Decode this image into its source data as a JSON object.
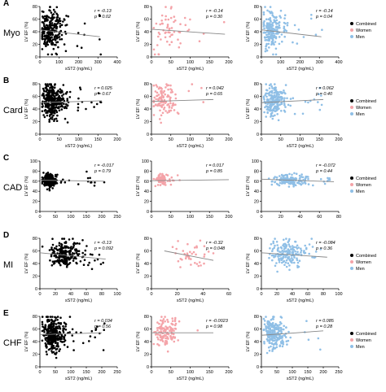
{
  "legend": {
    "items": [
      {
        "label": "Combined",
        "color": "#000000"
      },
      {
        "label": "Women",
        "color": "#f4a3a8"
      },
      {
        "label": "Men",
        "color": "#8fbfe6"
      }
    ],
    "placement": "right"
  },
  "colors": {
    "combined": "#000000",
    "women": "#f4a3a8",
    "men": "#8fbfe6",
    "trend": "#888888"
  },
  "chart_data": [
    {
      "type": "scatter",
      "panel": "A",
      "row_label": "Myo",
      "ylabel": "LV EF (%)",
      "yticks": [
        0,
        20,
        40,
        60,
        80
      ],
      "ylim": [
        0,
        80
      ],
      "xlabel": "sST2 (ng/mL)",
      "x_label_shown": true,
      "plots": [
        {
          "group": "Combined",
          "color": "#000000",
          "r": "r = -0.13",
          "p": "p = 0.02",
          "xticks": [
            0,
            100,
            200,
            300,
            400
          ],
          "xlim": [
            0,
            400
          ],
          "trend": {
            "x": [
              0,
              310
            ],
            "y": [
              43,
              32
            ]
          },
          "n_points": 260,
          "cloud": {
            "x_center": 45,
            "x_spread": 38,
            "x_max": 330,
            "y_center": 42,
            "y_spread": 16
          }
        },
        {
          "group": "Women",
          "color": "#f4a3a8",
          "r": "r = -0.14",
          "p": "p = 0.30",
          "xticks": [
            0,
            50,
            100,
            150,
            200
          ],
          "xlim": [
            0,
            200
          ],
          "trend": {
            "x": [
              0,
              190
            ],
            "y": [
              44,
              36
            ]
          },
          "n_points": 60,
          "cloud": {
            "x_center": 40,
            "x_spread": 35,
            "x_max": 190,
            "y_center": 42,
            "y_spread": 17
          }
        },
        {
          "group": "Men",
          "color": "#8fbfe6",
          "r": "r = -0.14",
          "p": "p = 0.04",
          "xticks": [
            0,
            100,
            200,
            300,
            400
          ],
          "xlim": [
            0,
            400
          ],
          "trend": {
            "x": [
              0,
              310
            ],
            "y": [
              43,
              32
            ]
          },
          "n_points": 200,
          "cloud": {
            "x_center": 45,
            "x_spread": 38,
            "x_max": 320,
            "y_center": 42,
            "y_spread": 16
          }
        }
      ]
    },
    {
      "type": "scatter",
      "panel": "B",
      "row_label": "Card",
      "ylabel": "LV EF (%)",
      "yticks": [
        0,
        20,
        40,
        60,
        80
      ],
      "ylim": [
        0,
        80
      ],
      "xlabel": "sST2 (ng/mL)",
      "x_label_shown": true,
      "plots": [
        {
          "group": "Combined",
          "color": "#000000",
          "r": "r = 0.025",
          "p": "p = 0.67",
          "xticks": [
            0,
            50,
            100,
            150,
            200
          ],
          "xlim": [
            0,
            200
          ],
          "trend": {
            "x": [
              0,
              160
            ],
            "y": [
              50,
              53
            ]
          },
          "n_points": 320,
          "cloud": {
            "x_center": 28,
            "x_spread": 18,
            "x_max": 160,
            "y_center": 52,
            "y_spread": 13
          }
        },
        {
          "group": "Women",
          "color": "#f4a3a8",
          "r": "r = 0.042",
          "p": "p = 0.65",
          "xticks": [
            0,
            50,
            100,
            150,
            200
          ],
          "xlim": [
            0,
            200
          ],
          "trend": {
            "x": [
              0,
              160
            ],
            "y": [
              52,
              55
            ]
          },
          "n_points": 110,
          "cloud": {
            "x_center": 28,
            "x_spread": 18,
            "x_max": 150,
            "y_center": 53,
            "y_spread": 13
          }
        },
        {
          "group": "Men",
          "color": "#8fbfe6",
          "r": "r = 0.062",
          "p": "p = 0.40",
          "xticks": [
            0,
            50,
            100,
            150,
            200
          ],
          "xlim": [
            0,
            200
          ],
          "trend": {
            "x": [
              0,
              160
            ],
            "y": [
              50,
              55
            ]
          },
          "n_points": 210,
          "cloud": {
            "x_center": 28,
            "x_spread": 18,
            "x_max": 160,
            "y_center": 52,
            "y_spread": 13
          }
        }
      ]
    },
    {
      "type": "scatter",
      "panel": "C",
      "row_label": "CAD",
      "ylabel": "LV EF (%)",
      "yticks": [
        0,
        20,
        40,
        60,
        80,
        100
      ],
      "ylim": [
        0,
        100
      ],
      "xlabel": "sST2 (ng/mL)",
      "x_label_shown": false,
      "plots": [
        {
          "group": "Combined",
          "color": "#000000",
          "r": "r = -0.017",
          "p": "p = 0.79",
          "xticks": [
            0,
            50,
            100,
            150,
            200,
            250
          ],
          "xlim": [
            0,
            250
          ],
          "trend": {
            "x": [
              0,
              210
            ],
            "y": [
              62,
              60
            ]
          },
          "n_points": 230,
          "cloud": {
            "x_center": 25,
            "x_spread": 12,
            "x_max": 210,
            "y_center": 62,
            "y_spread": 6
          }
        },
        {
          "group": "Women",
          "color": "#f4a3a8",
          "r": "r = 0.017",
          "p": "p = 0.85",
          "xticks": [
            0,
            50,
            100,
            150,
            200
          ],
          "xlim": [
            0,
            200
          ],
          "trend": {
            "x": [
              0,
              200
            ],
            "y": [
              61,
              63
            ]
          },
          "n_points": 80,
          "cloud": {
            "x_center": 22,
            "x_spread": 10,
            "x_max": 90,
            "y_center": 63,
            "y_spread": 5
          }
        },
        {
          "group": "Men",
          "color": "#8fbfe6",
          "r": "r = -0.072",
          "p": "p = 0.44",
          "xticks": [
            0,
            20,
            40,
            60,
            80
          ],
          "xlim": [
            0,
            80
          ],
          "trend": {
            "x": [
              0,
              75
            ],
            "y": [
              64,
              59
            ]
          },
          "n_points": 150,
          "cloud": {
            "x_center": 25,
            "x_spread": 12,
            "x_max": 75,
            "y_center": 62,
            "y_spread": 6
          }
        }
      ]
    },
    {
      "type": "scatter",
      "panel": "D",
      "row_label": "MI",
      "ylabel": "LV EF (%)",
      "yticks": [
        0,
        20,
        40,
        60,
        80
      ],
      "ylim": [
        0,
        80
      ],
      "xlabel": "sST2 (ng/mL)",
      "x_label_shown": true,
      "plots": [
        {
          "group": "Combined",
          "color": "#000000",
          "r": "r = -0.13",
          "p": "p = 0.092",
          "xticks": [
            0,
            20,
            40,
            60,
            80,
            100
          ],
          "xlim": [
            0,
            100
          ],
          "trend": {
            "x": [
              0,
              85
            ],
            "y": [
              57,
              47
            ]
          },
          "n_points": 220,
          "cloud": {
            "x_center": 30,
            "x_spread": 14,
            "x_max": 85,
            "y_center": 55,
            "y_spread": 10
          }
        },
        {
          "group": "Women",
          "color": "#f4a3a8",
          "r": "r = -0.32",
          "p": "p = 0.048",
          "xticks": [
            0,
            20,
            40,
            60
          ],
          "xlim": [
            0,
            60
          ],
          "trend": {
            "x": [
              10,
              48
            ],
            "y": [
              60,
              45
            ]
          },
          "n_points": 40,
          "cloud": {
            "x_center": 26,
            "x_spread": 9,
            "x_max": 48,
            "y_center": 52,
            "y_spread": 9
          }
        },
        {
          "group": "Men",
          "color": "#8fbfe6",
          "r": "r = -0.084",
          "p": "p = 0.36",
          "xticks": [
            0,
            20,
            40,
            60,
            80,
            100
          ],
          "xlim": [
            0,
            100
          ],
          "trend": {
            "x": [
              0,
              85
            ],
            "y": [
              57,
              50
            ]
          },
          "n_points": 180,
          "cloud": {
            "x_center": 30,
            "x_spread": 14,
            "x_max": 85,
            "y_center": 55,
            "y_spread": 10
          }
        }
      ]
    },
    {
      "type": "scatter",
      "panel": "E",
      "row_label": "CHF",
      "ylabel": "LV EF (%)",
      "yticks": [
        0,
        20,
        40,
        60,
        80
      ],
      "ylim": [
        0,
        80
      ],
      "xlabel": "sST2 (ng/mL)",
      "x_label_shown": true,
      "plots": [
        {
          "group": "Combined",
          "color": "#000000",
          "r": "r = 0.034",
          "p": "p = 0.56",
          "xticks": [
            0,
            50,
            100,
            150,
            200,
            250
          ],
          "xlim": [
            0,
            250
          ],
          "trend": {
            "x": [
              0,
              200
            ],
            "y": [
              51,
              54
            ]
          },
          "n_points": 330,
          "cloud": {
            "x_center": 35,
            "x_spread": 22,
            "x_max": 210,
            "y_center": 52,
            "y_spread": 13
          }
        },
        {
          "group": "Women",
          "color": "#f4a3a8",
          "r": "r = -0.0023",
          "p": "p = 0.98",
          "xticks": [
            0,
            50,
            100,
            150,
            200
          ],
          "xlim": [
            0,
            200
          ],
          "trend": {
            "x": [
              0,
              160
            ],
            "y": [
              54,
              54
            ]
          },
          "n_points": 120,
          "cloud": {
            "x_center": 30,
            "x_spread": 18,
            "x_max": 130,
            "y_center": 55,
            "y_spread": 12
          }
        },
        {
          "group": "Men",
          "color": "#8fbfe6",
          "r": "r = 0.085",
          "p": "p = 0.28",
          "xticks": [
            0,
            50,
            100,
            150,
            200,
            250
          ],
          "xlim": [
            0,
            250
          ],
          "trend": {
            "x": [
              0,
              200
            ],
            "y": [
              50,
              57
            ]
          },
          "n_points": 210,
          "cloud": {
            "x_center": 35,
            "x_spread": 22,
            "x_max": 210,
            "y_center": 52,
            "y_spread": 13
          }
        }
      ]
    }
  ]
}
